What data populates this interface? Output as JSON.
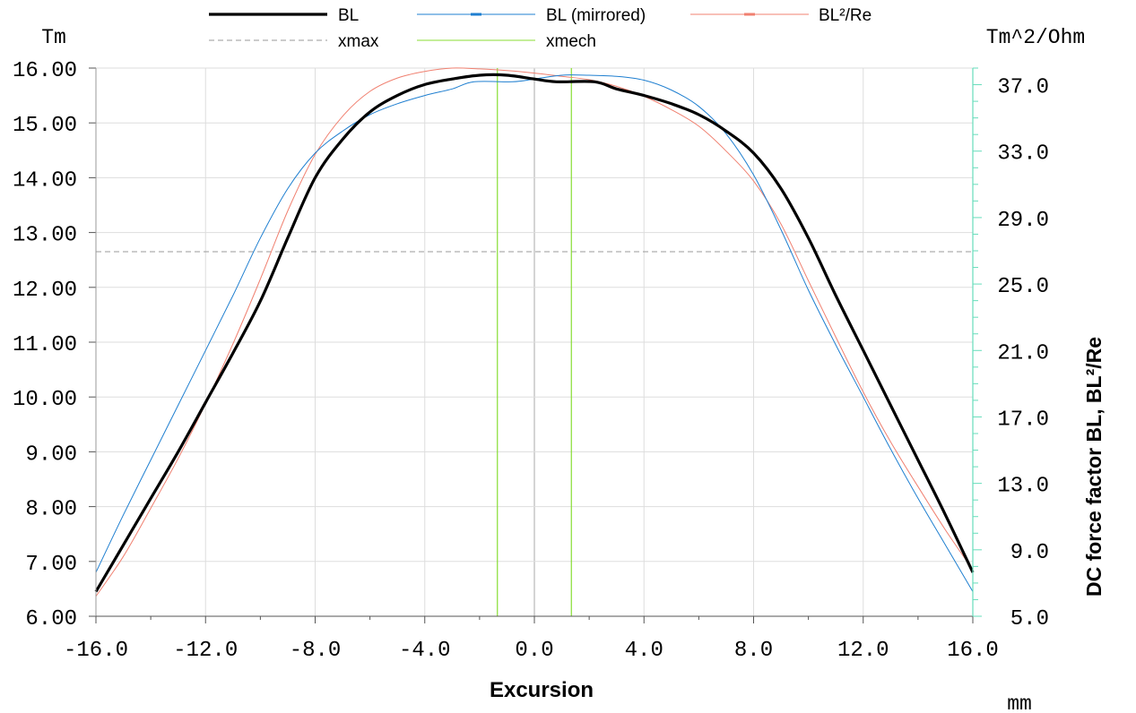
{
  "chart_data": {
    "type": "line",
    "title": "",
    "xlabel": "Excursion",
    "x_unit": "mm",
    "ylabel": "Tm",
    "y2label": "DC force factor BL, BL²/Re",
    "y2_unit": "Tm^2/Ohm",
    "xlim": [
      -16,
      16
    ],
    "ylim": [
      6,
      16
    ],
    "y2lim": [
      5,
      38
    ],
    "x_ticks": [
      "-16.0",
      "-12.0",
      "-8.0",
      "-4.0",
      "0.0",
      "4.0",
      "8.0",
      "12.0",
      "16.0"
    ],
    "y_ticks": [
      "6.00",
      "7.00",
      "8.00",
      "9.00",
      "10.00",
      "11.00",
      "12.00",
      "13.00",
      "14.00",
      "15.00",
      "16.00"
    ],
    "y2_ticks": [
      "5.0",
      "9.0",
      "13.0",
      "17.0",
      "21.0",
      "25.0",
      "29.0",
      "33.0",
      "37.0"
    ],
    "grid": true,
    "legend_position": "top",
    "series": [
      {
        "name": "BL",
        "color": "#000000",
        "axis": "left",
        "points": [
          [
            -16,
            6.45
          ],
          [
            -15,
            7.3
          ],
          [
            -14,
            8.15
          ],
          [
            -13,
            9.0
          ],
          [
            -12,
            9.9
          ],
          [
            -11,
            10.8
          ],
          [
            -10,
            11.75
          ],
          [
            -9,
            12.9
          ],
          [
            -8,
            14.0
          ],
          [
            -7,
            14.7
          ],
          [
            -6,
            15.2
          ],
          [
            -5,
            15.5
          ],
          [
            -4,
            15.7
          ],
          [
            -3,
            15.8
          ],
          [
            -2,
            15.87
          ],
          [
            -1,
            15.87
          ],
          [
            0,
            15.8
          ],
          [
            0.8,
            15.75
          ],
          [
            2.2,
            15.75
          ],
          [
            3,
            15.62
          ],
          [
            4,
            15.5
          ],
          [
            5,
            15.35
          ],
          [
            6,
            15.15
          ],
          [
            7,
            14.85
          ],
          [
            8,
            14.45
          ],
          [
            9,
            13.8
          ],
          [
            10,
            12.9
          ],
          [
            11,
            11.85
          ],
          [
            12,
            10.85
          ],
          [
            13,
            9.85
          ],
          [
            14,
            8.85
          ],
          [
            15,
            7.85
          ],
          [
            16,
            6.8
          ]
        ]
      },
      {
        "name": "BL (mirrored)",
        "color": "#1f7fd0",
        "axis": "left",
        "points": [
          [
            -16,
            6.8
          ],
          [
            -15,
            7.85
          ],
          [
            -14,
            8.85
          ],
          [
            -13,
            9.85
          ],
          [
            -12,
            10.85
          ],
          [
            -11,
            11.85
          ],
          [
            -10,
            12.9
          ],
          [
            -9,
            13.8
          ],
          [
            -8,
            14.45
          ],
          [
            -7,
            14.85
          ],
          [
            -6,
            15.15
          ],
          [
            -5,
            15.35
          ],
          [
            -4,
            15.5
          ],
          [
            -3,
            15.62
          ],
          [
            -2.2,
            15.75
          ],
          [
            -0.8,
            15.75
          ],
          [
            0,
            15.8
          ],
          [
            1,
            15.87
          ],
          [
            2,
            15.87
          ],
          [
            3,
            15.85
          ],
          [
            4,
            15.78
          ],
          [
            5,
            15.6
          ],
          [
            6,
            15.3
          ],
          [
            7,
            14.8
          ],
          [
            8,
            14.05
          ],
          [
            9,
            13.05
          ],
          [
            10,
            11.95
          ],
          [
            11,
            10.95
          ],
          [
            12,
            10.0
          ],
          [
            13,
            9.05
          ],
          [
            14,
            8.15
          ],
          [
            15,
            7.3
          ],
          [
            16,
            6.45
          ]
        ]
      },
      {
        "name": "BL²/Re",
        "color": "#f08070",
        "axis": "right",
        "points": [
          [
            -16,
            6.2
          ],
          [
            -15,
            8.6
          ],
          [
            -14,
            11.5
          ],
          [
            -13,
            14.5
          ],
          [
            -12,
            17.8
          ],
          [
            -11,
            21.4
          ],
          [
            -10,
            25.3
          ],
          [
            -9,
            29.4
          ],
          [
            -8,
            32.8
          ],
          [
            -7,
            35.1
          ],
          [
            -6,
            36.6
          ],
          [
            -5,
            37.4
          ],
          [
            -4,
            37.8
          ],
          [
            -3,
            38.0
          ],
          [
            -2,
            37.95
          ],
          [
            -1,
            37.85
          ],
          [
            0,
            37.7
          ],
          [
            1,
            37.5
          ],
          [
            2,
            37.3
          ],
          [
            3,
            36.9
          ],
          [
            4,
            36.3
          ],
          [
            5,
            35.5
          ],
          [
            6,
            34.5
          ],
          [
            7,
            33.0
          ],
          [
            8,
            31.2
          ],
          [
            9,
            28.6
          ],
          [
            10,
            25.2
          ],
          [
            11,
            21.8
          ],
          [
            12,
            18.5
          ],
          [
            13,
            15.5
          ],
          [
            14,
            12.8
          ],
          [
            15,
            10.2
          ],
          [
            16,
            7.8
          ]
        ]
      },
      {
        "name": "xmax",
        "color": "#999999",
        "style": "dashed",
        "axis": "left",
        "points": [
          [
            -16,
            12.65
          ],
          [
            16,
            12.65
          ]
        ]
      },
      {
        "name": "xmech",
        "color": "#88dd33",
        "style": "vertical",
        "x_values": [
          -1.35,
          1.35
        ]
      }
    ]
  }
}
